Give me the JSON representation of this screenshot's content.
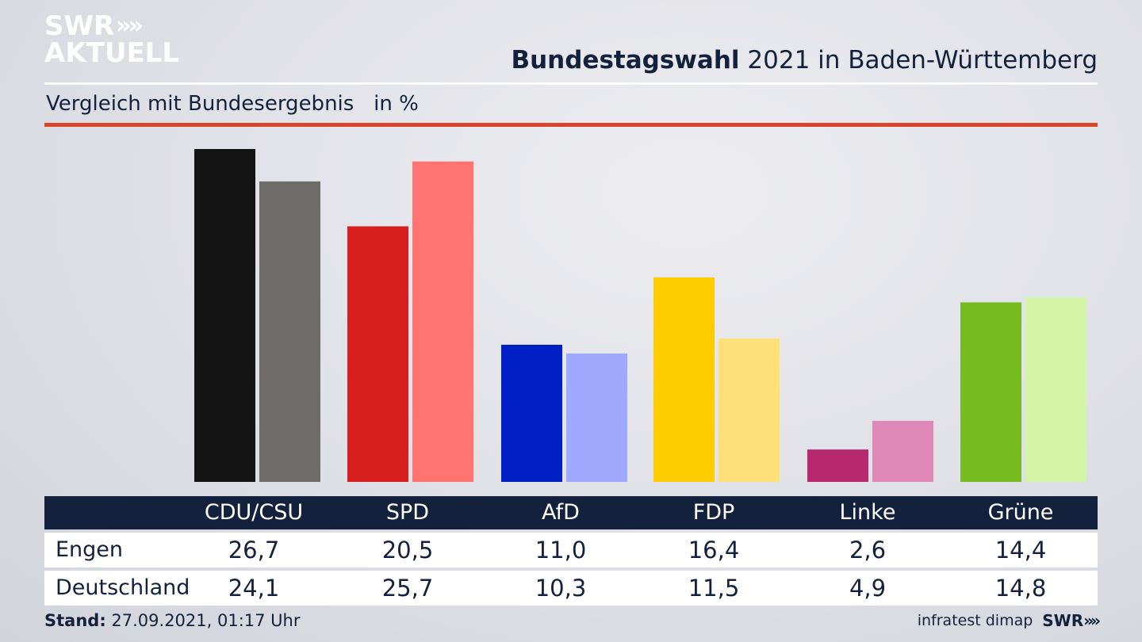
{
  "logo": {
    "line1": "SWR",
    "line2": "AKTUELL",
    "chevrons": "»"
  },
  "header": {
    "title_bold": "Bundestagswahl",
    "title_rest": " 2021 in Baden-Württemberg",
    "subtitle": "Vergleich mit Bundesergebnis   in %"
  },
  "chart_data": {
    "type": "bar",
    "categories": [
      "CDU/CSU",
      "SPD",
      "AfD",
      "FDP",
      "Linke",
      "Grüne"
    ],
    "series": [
      {
        "name": "Engen",
        "values": [
          26.7,
          20.5,
          11.0,
          16.4,
          2.6,
          14.4
        ],
        "colors": [
          "#141414",
          "#d71f1f",
          "#0020c6",
          "#ffcc00",
          "#b72a72",
          "#76bc21"
        ]
      },
      {
        "name": "Deutschland",
        "values": [
          24.1,
          25.7,
          10.3,
          11.5,
          4.9,
          14.8
        ],
        "colors": [
          "#6e6c6a",
          "#ff7470",
          "#9faaff",
          "#fde078",
          "#e089b8",
          "#d4f5a8"
        ]
      }
    ],
    "title": "",
    "xlabel": "",
    "ylabel": "",
    "ylim": [
      0,
      27
    ],
    "grid": false,
    "legend": "none"
  },
  "table": {
    "headers": [
      "CDU/CSU",
      "SPD",
      "AfD",
      "FDP",
      "Linke",
      "Grüne"
    ],
    "rows": [
      {
        "label": "Engen",
        "values": [
          "26,7",
          "20,5",
          "11,0",
          "16,4",
          "2,6",
          "14,4"
        ]
      },
      {
        "label": "Deutschland",
        "values": [
          "24,1",
          "25,7",
          "10,3",
          "11,5",
          "4,9",
          "14,8"
        ]
      }
    ]
  },
  "footer": {
    "stand_label": "Stand:",
    "stand_value": " 27.09.2021, 01:17 Uhr",
    "source": "infratest dimap",
    "brand": "SWR",
    "brand_chevrons": "»"
  }
}
